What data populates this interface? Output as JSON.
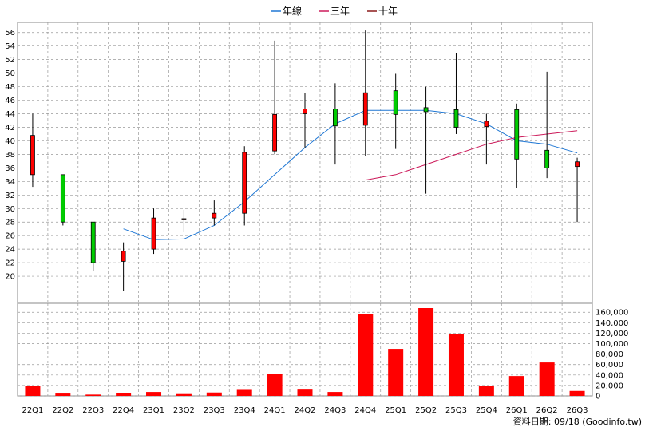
{
  "colors": {
    "annual_line": "#1f77d4",
    "three_year_line": "#cc1a5a",
    "ten_year_line": "#8b1a1a",
    "candle_up": "#ff0000",
    "candle_down": "#00cc00",
    "volume_bar": "#ff0000",
    "grid": "#999999"
  },
  "legend": [
    {
      "key": "annual",
      "label": "年線",
      "color": "#1f77d4"
    },
    {
      "key": "three_year",
      "label": "三年",
      "color": "#cc1a5a"
    },
    {
      "key": "ten_year",
      "label": "十年",
      "color": "#8b1a1a"
    }
  ],
  "footer": {
    "source": "資料日期: 09/18  (Goodinfo.tw)"
  },
  "chart_data": {
    "type": "candlestick",
    "categories": [
      "22Q1",
      "22Q2",
      "22Q3",
      "22Q4",
      "23Q1",
      "23Q2",
      "23Q3",
      "23Q4",
      "24Q1",
      "24Q2",
      "24Q3",
      "24Q4",
      "25Q1",
      "25Q2",
      "25Q3",
      "25Q4",
      "26Q1",
      "26Q2",
      "26Q3"
    ],
    "price_axis": {
      "min": 16,
      "max": 57.5,
      "ticks": [
        20,
        22,
        24,
        26,
        28,
        30,
        32,
        34,
        36,
        38,
        40,
        42,
        44,
        46,
        48,
        50,
        52,
        54,
        56
      ]
    },
    "ohlc": [
      {
        "o": 35.0,
        "h": 44.0,
        "l": 33.2,
        "c": 40.8
      },
      {
        "o": 35.0,
        "h": 35.0,
        "l": 27.5,
        "c": 28.0
      },
      {
        "o": 28.0,
        "h": 28.0,
        "l": 20.8,
        "c": 22.0
      },
      {
        "o": 22.2,
        "h": 25.0,
        "l": 17.8,
        "c": 23.7
      },
      {
        "o": 24.0,
        "h": 30.0,
        "l": 23.3,
        "c": 28.6
      },
      {
        "o": 28.4,
        "h": 29.8,
        "l": 26.5,
        "c": 28.5
      },
      {
        "o": 28.6,
        "h": 31.2,
        "l": 27.5,
        "c": 29.3
      },
      {
        "o": 29.3,
        "h": 39.2,
        "l": 27.5,
        "c": 38.3
      },
      {
        "o": 38.5,
        "h": 54.8,
        "l": 38.0,
        "c": 43.9
      },
      {
        "o": 44.0,
        "h": 47.0,
        "l": 39.0,
        "c": 44.7
      },
      {
        "o": 44.7,
        "h": 48.5,
        "l": 36.5,
        "c": 42.2
      },
      {
        "o": 42.3,
        "h": 56.3,
        "l": 37.8,
        "c": 47.1
      },
      {
        "o": 47.4,
        "h": 49.9,
        "l": 38.8,
        "c": 43.9
      },
      {
        "o": 44.9,
        "h": 48.0,
        "l": 32.2,
        "c": 44.3
      },
      {
        "o": 44.6,
        "h": 53.0,
        "l": 41.0,
        "c": 42.0
      },
      {
        "o": 42.1,
        "h": 44.0,
        "l": 36.5,
        "c": 42.9
      },
      {
        "o": 44.6,
        "h": 45.5,
        "l": 33.0,
        "c": 37.3
      },
      {
        "o": 38.6,
        "h": 50.2,
        "l": 34.5,
        "c": 36.0
      },
      {
        "o": 36.2,
        "h": 37.5,
        "l": 28.0,
        "c": 36.9
      }
    ],
    "series": [
      {
        "name": "年線",
        "values": [
          null,
          null,
          null,
          27.0,
          25.4,
          25.5,
          27.5,
          31.0,
          35.0,
          39.0,
          42.5,
          44.5,
          44.5,
          44.5,
          44.0,
          42.5,
          40.0,
          39.5,
          38.2
        ]
      },
      {
        "name": "三年",
        "values": [
          null,
          null,
          null,
          null,
          null,
          null,
          null,
          null,
          null,
          null,
          null,
          34.2,
          35.0,
          36.5,
          38.0,
          39.5,
          40.5,
          41.0,
          41.5
        ]
      },
      {
        "name": "十年",
        "values": [
          null,
          null,
          null,
          null,
          null,
          null,
          null,
          null,
          null,
          null,
          null,
          null,
          null,
          null,
          null,
          null,
          null,
          null,
          null
        ]
      }
    ],
    "volume": {
      "ticks": [
        0,
        20000,
        40000,
        60000,
        80000,
        100000,
        120000,
        140000,
        160000
      ],
      "tick_labels": [
        "0",
        "20,000",
        "40,000",
        "60,000",
        "80,000",
        "100,000",
        "120,000",
        "140,000",
        "160,000"
      ],
      "max": 168000,
      "values": [
        19000,
        4500,
        2500,
        5000,
        7500,
        3500,
        6500,
        11500,
        42000,
        12000,
        7500,
        157000,
        90000,
        168000,
        118000,
        19000,
        38000,
        64000,
        9500
      ]
    }
  }
}
